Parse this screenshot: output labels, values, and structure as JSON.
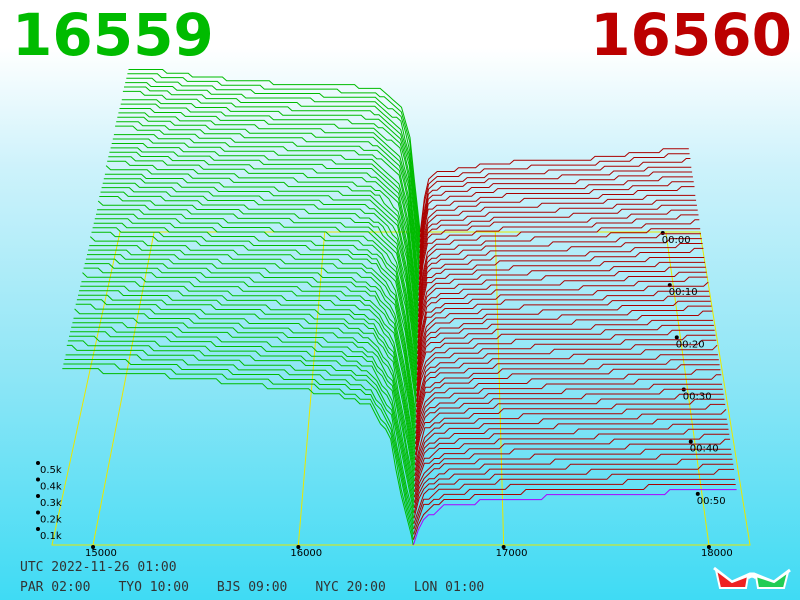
{
  "header": {
    "bid": "16559",
    "ask": "16560",
    "bid_color": "#00bb00",
    "ask_color": "#bb0000"
  },
  "footer": {
    "utc": "UTC 2022-11-26 01:00",
    "clocks": [
      "PAR 02:00",
      "TYO 10:00",
      "BJS 09:00",
      "NYC 20:00",
      "LON 01:00"
    ]
  },
  "glasses": {
    "icon": "3d-glasses-icon"
  },
  "chart_data": {
    "type": "3d-depth-waterfall",
    "price_axis": {
      "ticks": [
        15000,
        16000,
        17000,
        18000
      ],
      "labels": [
        "15000",
        "16000",
        "17000",
        "18000"
      ],
      "range": [
        14800,
        18200
      ]
    },
    "volume_axis": {
      "ticks": [
        100,
        200,
        300,
        400,
        500
      ],
      "labels": [
        "0.1k",
        "0.2k",
        "0.3k",
        "0.4k",
        "0.5k"
      ]
    },
    "time_axis": {
      "ticks": [
        0,
        10,
        20,
        30,
        40,
        50
      ],
      "labels": [
        "00:00",
        "00:10",
        "00:20",
        "00:30",
        "00:40",
        "00:50"
      ]
    },
    "mid_price": 16559.5,
    "colors": {
      "bid": "#00bb00",
      "ask": "#aa0000",
      "grid": "#e8e800",
      "latest_ask": "#aa00ff"
    },
    "slices": 60,
    "bid_profile_front": [
      [
        14850,
        420
      ],
      [
        15000,
        415
      ],
      [
        15200,
        410
      ],
      [
        15500,
        395
      ],
      [
        15800,
        380
      ],
      [
        16000,
        370
      ],
      [
        16200,
        355
      ],
      [
        16350,
        330
      ],
      [
        16450,
        250
      ],
      [
        16500,
        120
      ],
      [
        16559,
        0
      ]
    ],
    "ask_profile_front": [
      [
        16560,
        0
      ],
      [
        16600,
        60
      ],
      [
        16700,
        90
      ],
      [
        17000,
        110
      ],
      [
        17500,
        120
      ],
      [
        18000,
        130
      ],
      [
        18200,
        135
      ]
    ],
    "bid_profile_back": [
      [
        14950,
        520
      ],
      [
        15100,
        505
      ],
      [
        15500,
        480
      ],
      [
        15800,
        470
      ],
      [
        16000,
        465
      ],
      [
        16300,
        460
      ],
      [
        16450,
        400
      ],
      [
        16500,
        300
      ],
      [
        16559,
        0
      ]
    ],
    "ask_profile_back": [
      [
        16560,
        0
      ],
      [
        16600,
        170
      ],
      [
        16650,
        190
      ],
      [
        16800,
        200
      ],
      [
        17000,
        220
      ],
      [
        17500,
        230
      ],
      [
        18000,
        260
      ],
      [
        18200,
        265
      ]
    ]
  }
}
